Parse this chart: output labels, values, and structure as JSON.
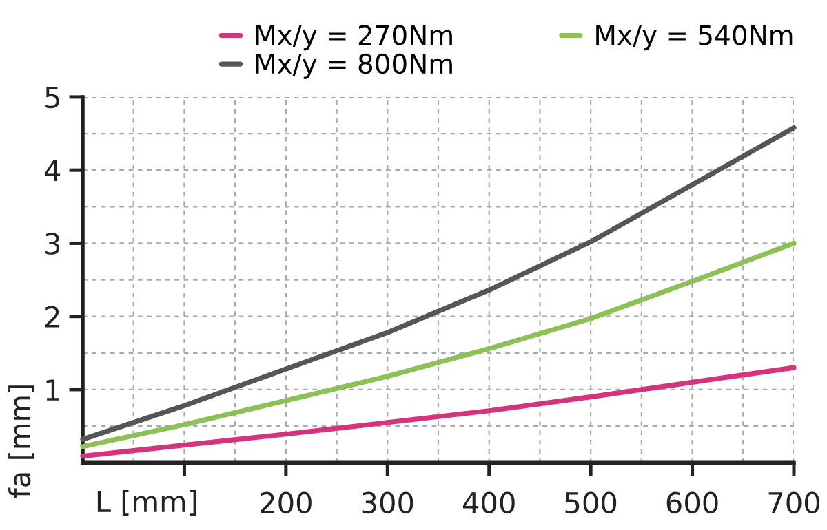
{
  "chart_data": {
    "type": "line",
    "xlabel": "L [mm]",
    "ylabel": "fa [mm]",
    "x": [
      0,
      100,
      200,
      300,
      400,
      500,
      600,
      700
    ],
    "series": [
      {
        "name": "Mx/y = 270Nm",
        "color": "#d6337f",
        "values": [
          0.09,
          0.24,
          0.39,
          0.55,
          0.71,
          0.9,
          1.1,
          1.3
        ]
      },
      {
        "name": "Mx/y = 540Nm",
        "color": "#8dc056",
        "values": [
          0.22,
          0.52,
          0.85,
          1.18,
          1.56,
          1.97,
          2.48,
          3.0
        ]
      },
      {
        "name": "Mx/y = 800Nm",
        "color": "#55565a",
        "values": [
          0.32,
          0.78,
          1.28,
          1.78,
          2.36,
          3.02,
          3.8,
          4.58
        ]
      }
    ],
    "xlim": [
      0,
      700
    ],
    "xticks": [
      {
        "value": 0,
        "label": null
      },
      {
        "value": 50,
        "label": null
      },
      {
        "value": 100,
        "label": null
      },
      {
        "value": 150,
        "label": null
      },
      200,
      {
        "value": 250,
        "label": null
      },
      300,
      {
        "value": 350,
        "label": null
      },
      400,
      {
        "value": 450,
        "label": null
      },
      500,
      {
        "value": 550,
        "label": null
      },
      600,
      {
        "value": 650,
        "label": null
      },
      700
    ],
    "ylim": [
      0,
      5
    ],
    "yticks": [
      {
        "value": 0,
        "label": null
      },
      {
        "value": 0.5,
        "label": null
      },
      1,
      {
        "value": 1.5,
        "label": null
      },
      2,
      {
        "value": 2.5,
        "label": null
      },
      3,
      {
        "value": 3.5,
        "label": null
      },
      4,
      {
        "value": 4.5,
        "label": null
      },
      5
    ],
    "grid": true,
    "legend": "top",
    "line_style": "solid",
    "marker": "none"
  }
}
